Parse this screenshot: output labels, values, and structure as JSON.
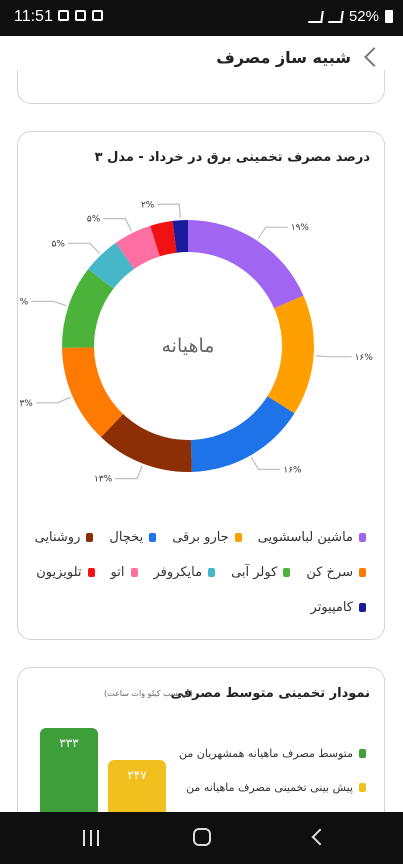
{
  "status_bar": {
    "time": "11:51",
    "battery": "52%"
  },
  "header": {
    "title": "شبیه ساز مصرف"
  },
  "consumption_card": {
    "title": "درصد مصرف تخمینی برق در خرداد - مدل ۳",
    "center_label": "ماهیانه"
  },
  "chart_data": {
    "type": "pie",
    "title": "درصد مصرف تخمینی برق در خرداد - مدل ۳",
    "center_label": "ماهیانه",
    "slices": [
      {
        "name": "ماشین لباسشویی",
        "value": 19,
        "label": "۱۹%",
        "color": "#A066F2"
      },
      {
        "name": "جارو برقی",
        "value": 16,
        "label": "۱۶%",
        "color": "#FFA000"
      },
      {
        "name": "یخچال",
        "value": 16,
        "label": "۱۶%",
        "color": "#1E73E8"
      },
      {
        "name": "روشنایی",
        "value": 13,
        "label": "۱۳%",
        "color": "#8C2F06"
      },
      {
        "name": "سرخ کن",
        "value": 13,
        "label": "۱۳%",
        "color": "#FF7A00"
      },
      {
        "name": "کولر آبی",
        "value": 11,
        "label": "۱۱%",
        "color": "#4CB33A"
      },
      {
        "name": "مایکروفر",
        "value": 5,
        "label": "۵%",
        "color": "#46B7C8"
      },
      {
        "name": "اتو",
        "value": 5,
        "label": "۵%",
        "color": "#FF6FA2"
      },
      {
        "name": "تلویزیون",
        "value": 3,
        "label": "",
        "color": "#F01212"
      },
      {
        "name": "کامپیوتر",
        "value": 2,
        "label": "۲%",
        "color": "#1A1A9A"
      }
    ]
  },
  "legend": {
    "row1": [
      {
        "label": "ماشین لباسشویی",
        "color": "#A066F2"
      },
      {
        "label": "جارو برقی",
        "color": "#FFA000"
      },
      {
        "label": "یخچال",
        "color": "#1E73E8"
      },
      {
        "label": "روشنایی",
        "color": "#8C2F06"
      }
    ],
    "row2": [
      {
        "label": "سرخ کن",
        "color": "#FF7A00"
      },
      {
        "label": "کولر آبی",
        "color": "#4CB33A"
      },
      {
        "label": "مایکروفر",
        "color": "#46B7C8"
      },
      {
        "label": "اتو",
        "color": "#FF6FA2"
      },
      {
        "label": "تلویزیون",
        "color": "#F01212"
      }
    ],
    "row3": [
      {
        "label": "کامپیوتر",
        "color": "#1A1A9A"
      }
    ]
  },
  "average_card": {
    "title": "نمودار تخمینی متوسط مصرفی",
    "unit": "(برحسب کیلو وات ساعت)",
    "bars": [
      {
        "name": "متوسط مصرف ماهیانه همشهریان من",
        "value": 333,
        "label": "۳۳۳",
        "color": "#3E9E3A"
      },
      {
        "name": "پیش بینی تخمینی مصرف ماهیانه من",
        "value": 247,
        "label": "۲۴۷",
        "color": "#F2C01E"
      }
    ]
  }
}
